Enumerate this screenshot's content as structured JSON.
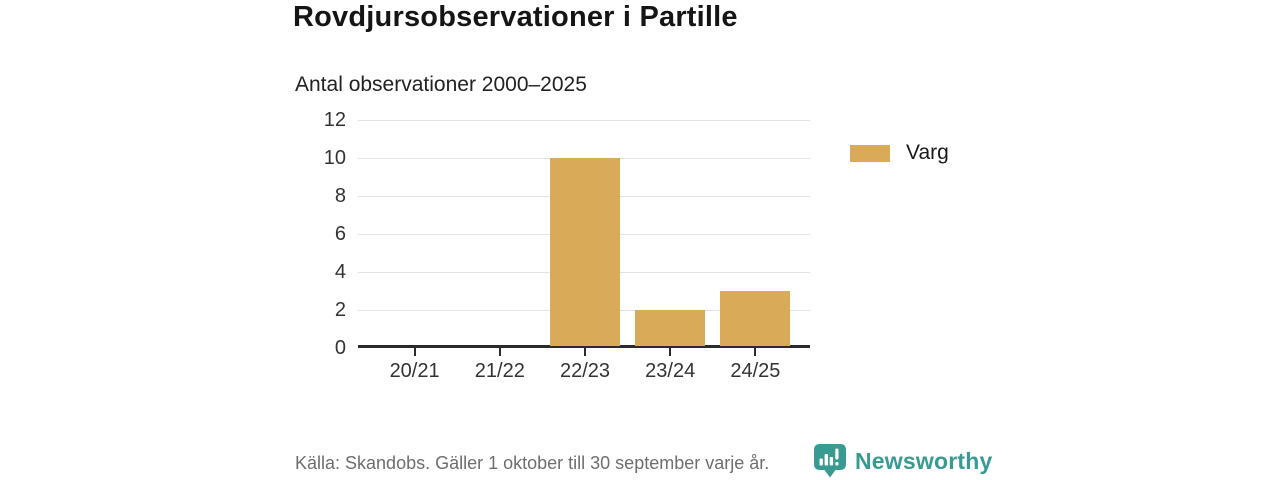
{
  "header": {
    "title": "Rovdjursobservationer i Partille",
    "subtitle": "Antal observationer 2000–2025"
  },
  "chart_data": {
    "type": "bar",
    "categories": [
      "20/21",
      "21/22",
      "22/23",
      "23/24",
      "24/25"
    ],
    "series": [
      {
        "name": "Varg",
        "values": [
          0,
          0,
          10,
          2,
          3
        ]
      }
    ],
    "title": "Rovdjursobservationer i Partille",
    "subtitle": "Antal observationer 2000–2025",
    "xlabel": "",
    "ylabel": "",
    "ylim": [
      0,
      12
    ],
    "yticks": [
      0,
      2,
      4,
      6,
      8,
      10,
      12
    ],
    "grid": true,
    "legend_position": "right"
  },
  "legend": {
    "items": [
      {
        "label": "Varg",
        "color": "#d9ab58"
      }
    ]
  },
  "footer": {
    "source": "Källa: Skandobs. Gäller 1 oktober till 30 september varje år.",
    "brand": "Newsworthy"
  },
  "icons": {
    "brand_logo": "newsworthy-speech-bubble-bar-chart-icon"
  },
  "colors": {
    "bar": "#d9ab58",
    "grid": "#e3e3e3",
    "axis": "#2b2b2b",
    "tick_text": "#333333",
    "title_text": "#151515",
    "subtitle_text": "#222222",
    "source_text": "#6e6e6e",
    "brand_teal": "#399a92",
    "background": "#ffffff"
  }
}
